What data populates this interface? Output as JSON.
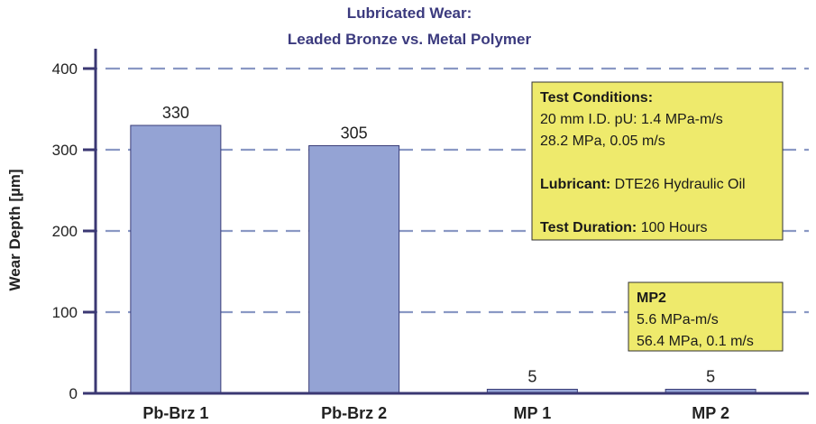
{
  "chart_data": {
    "type": "bar",
    "title_lines": [
      "Lubricated Wear:",
      "Leaded Bronze vs. Metal Polymer"
    ],
    "xlabel": "",
    "ylabel": "Wear Depth [µm]",
    "ylim": [
      0,
      400
    ],
    "yticks": [
      0,
      100,
      200,
      300,
      400
    ],
    "grid": true,
    "categories": [
      "Pb-Brz 1",
      "Pb-Brz 2",
      "MP 1",
      "MP 2"
    ],
    "values": [
      330,
      305,
      5,
      5
    ],
    "data_labels": [
      "330",
      "305",
      "5",
      "5"
    ],
    "colors": {
      "bar": "#94a3d4",
      "bar_outline": "#3a3d78",
      "annotation_box": "#eeea6c",
      "title": "#3b3a7e",
      "grid": "#8a98c4"
    },
    "annotations": [
      {
        "lines": [
          [
            {
              "text": "Test Conditions:",
              "bold": true
            }
          ],
          [
            {
              "text": "20 mm I.D. pU: 1.4 MPa-m/s",
              "bold": false
            }
          ],
          [
            {
              "text": "28.2 MPa, 0.05 m/s",
              "bold": false
            }
          ],
          [],
          [
            {
              "text": "Lubricant:",
              "bold": true
            },
            {
              "text": " DTE26 Hydraulic Oil",
              "bold": false
            }
          ],
          [],
          [
            {
              "text": "Test Duration:",
              "bold": true
            },
            {
              "text": " 100 Hours",
              "bold": false
            }
          ]
        ]
      },
      {
        "lines": [
          [
            {
              "text": "MP2",
              "bold": true
            }
          ],
          [
            {
              "text": "5.6 MPa-m/s",
              "bold": false
            }
          ],
          [
            {
              "text": "56.4 MPa, 0.1 m/s",
              "bold": false
            }
          ]
        ]
      }
    ]
  }
}
